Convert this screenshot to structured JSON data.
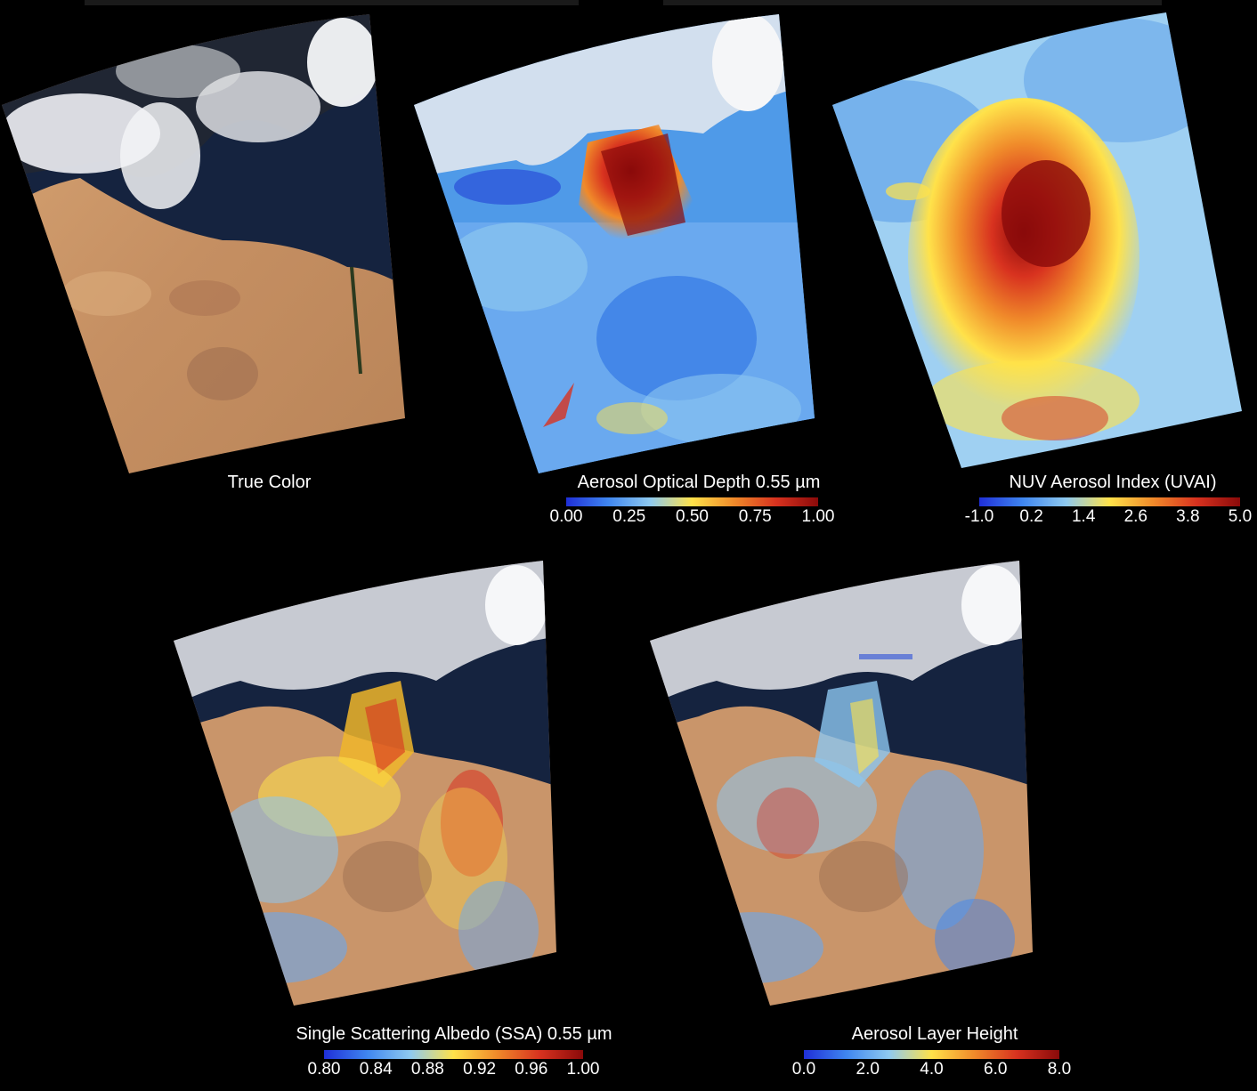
{
  "panels": [
    {
      "id": "true_color",
      "caption": "True Color",
      "has_colorbar": false,
      "ticks": []
    },
    {
      "id": "aod",
      "caption": "Aerosol Optical Depth 0.55 µm",
      "has_colorbar": true,
      "ticks": [
        "0.00",
        "0.25",
        "0.50",
        "0.75",
        "1.00"
      ]
    },
    {
      "id": "uvai",
      "caption": "NUV Aerosol Index (UVAI)",
      "has_colorbar": true,
      "ticks": [
        "-1.0",
        "0.2",
        "1.4",
        "2.6",
        "3.8",
        "5.0"
      ]
    },
    {
      "id": "ssa",
      "caption": "Single Scattering Albedo (SSA) 0.55 µm",
      "has_colorbar": true,
      "ticks": [
        "0.80",
        "0.84",
        "0.88",
        "0.92",
        "0.96",
        "1.00"
      ]
    },
    {
      "id": "alh",
      "caption": "Aerosol Layer Height",
      "has_colorbar": true,
      "ticks": [
        "0.0",
        "2.0",
        "4.0",
        "6.0",
        "8.0"
      ]
    }
  ],
  "colors": {
    "background": "#000000",
    "colormap": [
      "#1f2fd8",
      "#3f86f0",
      "#8fcaf0",
      "#ffe24a",
      "#f08a2a",
      "#d8321f",
      "#8a0a0a"
    ],
    "desert": "#c9956a",
    "sea": "#15233f",
    "cloud": "#eef0f4"
  }
}
